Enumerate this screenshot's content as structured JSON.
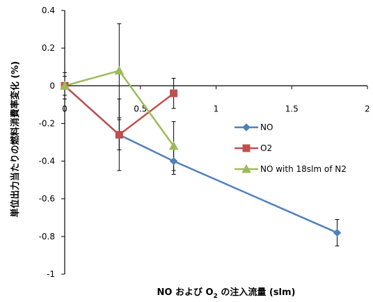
{
  "chart_data": {
    "type": "line",
    "title": "",
    "xlabel": "NO および O₂ の注入流量 (slm)",
    "xlabel_parts": {
      "pre": "NO および O",
      "sub": "2",
      "post": " の注入流量 (slm)"
    },
    "ylabel": "単位出力当たりの燃料消費率変化 (%)",
    "xlim": [
      0,
      2
    ],
    "ylim": [
      -1,
      0.4
    ],
    "x_ticks": [
      {
        "value": 0,
        "label": "0"
      },
      {
        "value": 0.5,
        "label": "0.5"
      },
      {
        "value": 1,
        "label": "1"
      },
      {
        "value": 1.5,
        "label": "1.5"
      },
      {
        "value": 2,
        "label": "2"
      }
    ],
    "y_ticks": [
      {
        "value": 0.4,
        "label": "0.4"
      },
      {
        "value": 0.2,
        "label": "0.2"
      },
      {
        "value": 0,
        "label": "0"
      },
      {
        "value": -0.2,
        "label": "-0.2"
      },
      {
        "value": -0.4,
        "label": "-0.4"
      },
      {
        "value": -0.6,
        "label": "-0.6"
      },
      {
        "value": -0.8,
        "label": "-0.8"
      },
      {
        "value": -1,
        "label": "-1"
      }
    ],
    "grid": false,
    "legend_position": "right-center",
    "series": [
      {
        "name": "NO",
        "color": "#4f81bd",
        "marker": "diamond",
        "points": [
          {
            "x": 0,
            "y": 0,
            "err": 0.0
          },
          {
            "x": 0.36,
            "y": -0.26,
            "err": 0.08
          },
          {
            "x": 0.72,
            "y": -0.4,
            "err": 0.07
          },
          {
            "x": 1.8,
            "y": -0.78,
            "err": 0.07
          }
        ]
      },
      {
        "name": "O2",
        "color": "#c0504d",
        "marker": "square",
        "points": [
          {
            "x": 0,
            "y": 0,
            "err": 0.05
          },
          {
            "x": 0.36,
            "y": -0.26,
            "err": 0.19
          },
          {
            "x": 0.72,
            "y": -0.04,
            "err": 0.08
          }
        ]
      },
      {
        "name": "NO with 18slm of N2",
        "color": "#9bbb59",
        "marker": "triangle",
        "points": [
          {
            "x": 0,
            "y": 0,
            "err": 0.07
          },
          {
            "x": 0.36,
            "y": 0.08,
            "err": 0.25
          },
          {
            "x": 0.72,
            "y": -0.32,
            "err": 0.13
          }
        ]
      }
    ]
  }
}
